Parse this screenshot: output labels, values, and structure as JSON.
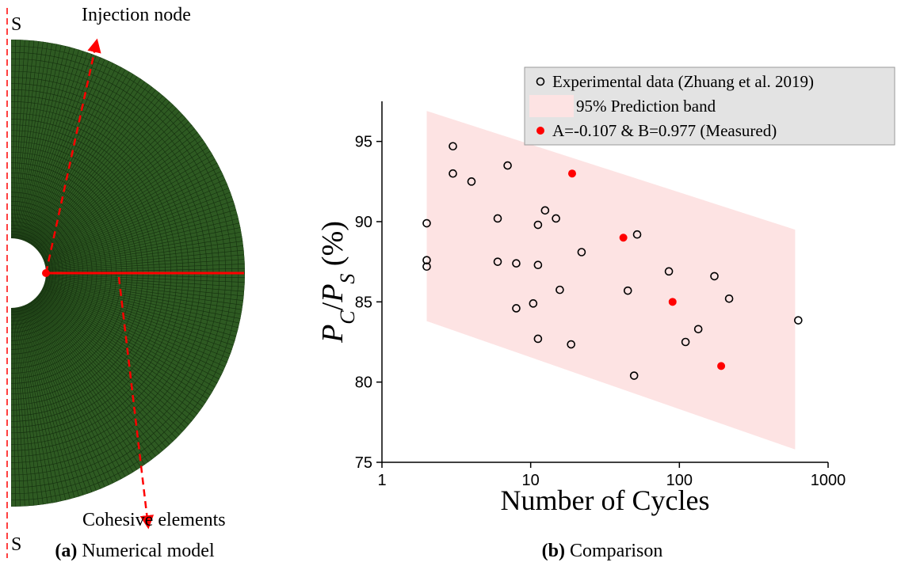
{
  "panel_a": {
    "s_top": "S",
    "s_bottom": "S",
    "injection": "Injection node",
    "cohesive": "Cohesive elements",
    "caption_label": "(a)",
    "caption": "Numerical model"
  },
  "panel_b_caption": {
    "label": "(b)",
    "text": "Comparison"
  },
  "chart_data": {
    "type": "scatter",
    "xlabel": "Number of Cycles",
    "ylabel": [
      "P",
      "C",
      "/",
      "P",
      "S",
      " (%)"
    ],
    "xscale": "log",
    "xlim": [
      1,
      1000
    ],
    "xticks": [
      1,
      10,
      100,
      1000
    ],
    "ylim": [
      75,
      97.5
    ],
    "yticks": [
      75,
      80,
      85,
      90,
      95
    ],
    "band": {
      "name": "95% Prediction band",
      "color": "#fde3e3",
      "x": [
        2,
        600
      ],
      "upper": [
        96.9,
        89.5
      ],
      "lower": [
        83.8,
        75.8
      ]
    },
    "series": [
      {
        "name": "Experimental data (Zhuang et al. 2019)",
        "color": "#000000",
        "marker": "open",
        "x": [
          2,
          2,
          2,
          3,
          3,
          4,
          7,
          6,
          6,
          8,
          8,
          12.5,
          14.8,
          11.2,
          11.2,
          10.4,
          11.2,
          15.7,
          18.7,
          22,
          52,
          45,
          49.6,
          85,
          110,
          134,
          172,
          216,
          630
        ],
        "values": [
          89.9,
          87.6,
          87.2,
          94.7,
          93.0,
          92.5,
          93.5,
          90.2,
          87.5,
          87.4,
          84.6,
          90.7,
          90.2,
          89.8,
          87.3,
          84.9,
          82.7,
          85.75,
          82.35,
          88.1,
          89.2,
          85.7,
          80.4,
          86.9,
          82.5,
          83.3,
          86.6,
          85.2,
          83.85
        ]
      },
      {
        "name": "A=-0.107 & B=0.977 (Measured)",
        "color": "#ff0000",
        "marker": "filled",
        "x": [
          19,
          42,
          90,
          191
        ],
        "values": [
          93.0,
          89.0,
          85.0,
          81.0
        ]
      }
    ]
  }
}
